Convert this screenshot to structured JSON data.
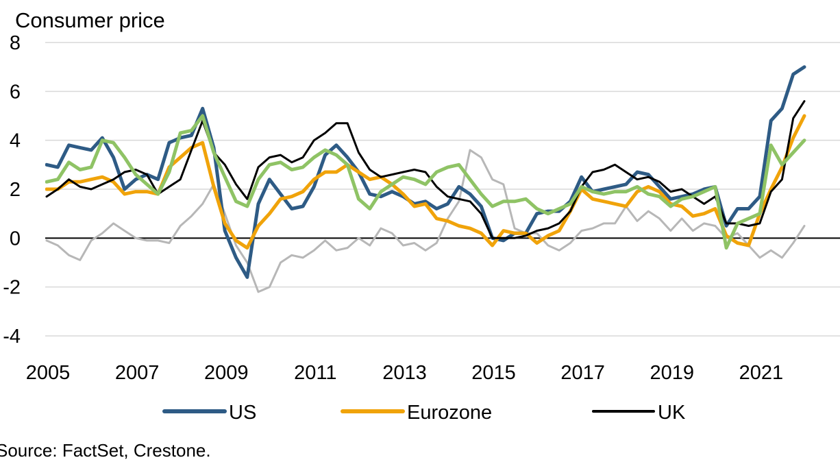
{
  "chart_data": {
    "type": "line",
    "title": "Consumer price",
    "xlabel": "",
    "ylabel": "",
    "ylim": [
      -4,
      8
    ],
    "y_ticks": [
      "8",
      "6",
      "4",
      "2",
      "0",
      "-2",
      "-4"
    ],
    "x_ticks": [
      "2005",
      "2007",
      "2009",
      "2011",
      "2013",
      "2015",
      "2017",
      "2019",
      "2021"
    ],
    "xlim": [
      2005,
      2022.8
    ],
    "grid": "horizontal",
    "legend_position": "bottom",
    "source": "Source: FactSet, Crestone.",
    "series": [
      {
        "name": "",
        "color": "#b7b7b7",
        "width": 3,
        "x": [
          2005.0,
          2005.25,
          2005.5,
          2005.75,
          2006.0,
          2006.25,
          2006.5,
          2006.75,
          2007.0,
          2007.25,
          2007.5,
          2007.75,
          2008.0,
          2008.25,
          2008.5,
          2008.75,
          2009.0,
          2009.25,
          2009.5,
          2009.75,
          2010.0,
          2010.25,
          2010.5,
          2010.75,
          2011.0,
          2011.25,
          2011.5,
          2011.75,
          2012.0,
          2012.25,
          2012.5,
          2012.75,
          2013.0,
          2013.25,
          2013.5,
          2013.75,
          2014.0,
          2014.25,
          2014.5,
          2014.75,
          2015.0,
          2015.25,
          2015.5,
          2015.75,
          2016.0,
          2016.25,
          2016.5,
          2016.75,
          2017.0,
          2017.25,
          2017.5,
          2017.75,
          2018.0,
          2018.25,
          2018.5,
          2018.75,
          2019.0,
          2019.25,
          2019.5,
          2019.75,
          2020.0,
          2020.25,
          2020.5,
          2020.75,
          2021.0,
          2021.25,
          2021.5,
          2021.75,
          2022.0
        ],
        "values": [
          -0.1,
          -0.3,
          -0.7,
          -0.9,
          -0.1,
          0.2,
          0.6,
          0.3,
          0.0,
          -0.1,
          -0.1,
          -0.2,
          0.5,
          0.9,
          1.4,
          2.2,
          1.0,
          -0.3,
          -1.0,
          -2.2,
          -2.0,
          -1.0,
          -0.7,
          -0.8,
          -0.5,
          -0.1,
          -0.5,
          -0.4,
          0.0,
          -0.3,
          0.4,
          0.2,
          -0.3,
          -0.2,
          -0.5,
          -0.2,
          0.8,
          1.5,
          3.6,
          3.3,
          2.4,
          2.2,
          0.4,
          0.2,
          0.2,
          -0.3,
          -0.5,
          -0.2,
          0.3,
          0.4,
          0.6,
          0.6,
          1.3,
          0.7,
          1.1,
          0.8,
          0.3,
          0.8,
          0.3,
          0.6,
          0.5,
          0.0,
          0.2,
          -0.3,
          -0.8,
          -0.5,
          -0.8,
          -0.2,
          0.5
        ]
      },
      {
        "name": "US",
        "color": "#2e5b85",
        "width": 5,
        "x": [
          2005.0,
          2005.25,
          2005.5,
          2005.75,
          2006.0,
          2006.25,
          2006.5,
          2006.75,
          2007.0,
          2007.25,
          2007.5,
          2007.75,
          2008.0,
          2008.25,
          2008.5,
          2008.75,
          2009.0,
          2009.25,
          2009.5,
          2009.75,
          2010.0,
          2010.25,
          2010.5,
          2010.75,
          2011.0,
          2011.25,
          2011.5,
          2011.75,
          2012.0,
          2012.25,
          2012.5,
          2012.75,
          2013.0,
          2013.25,
          2013.5,
          2013.75,
          2014.0,
          2014.25,
          2014.5,
          2014.75,
          2015.0,
          2015.25,
          2015.5,
          2015.75,
          2016.0,
          2016.25,
          2016.5,
          2016.75,
          2017.0,
          2017.25,
          2017.5,
          2017.75,
          2018.0,
          2018.25,
          2018.5,
          2018.75,
          2019.0,
          2019.25,
          2019.5,
          2019.75,
          2020.0,
          2020.25,
          2020.5,
          2020.75,
          2021.0,
          2021.25,
          2021.5,
          2021.75,
          2022.0
        ],
        "values": [
          3.0,
          2.9,
          3.8,
          3.7,
          3.6,
          4.1,
          3.3,
          2.0,
          2.4,
          2.6,
          2.4,
          3.9,
          4.1,
          4.2,
          5.3,
          3.7,
          0.3,
          -0.8,
          -1.6,
          1.4,
          2.4,
          1.8,
          1.2,
          1.3,
          2.1,
          3.4,
          3.8,
          3.3,
          2.7,
          1.8,
          1.7,
          1.9,
          1.7,
          1.4,
          1.5,
          1.2,
          1.4,
          2.1,
          1.8,
          1.3,
          0.0,
          -0.1,
          0.2,
          0.2,
          1.0,
          1.1,
          1.1,
          1.5,
          2.5,
          1.9,
          2.0,
          2.1,
          2.2,
          2.7,
          2.6,
          2.1,
          1.6,
          1.7,
          1.8,
          2.0,
          2.1,
          0.5,
          1.2,
          1.2,
          1.7,
          4.8,
          5.3,
          6.7,
          7.0
        ]
      },
      {
        "name": "Eurozone",
        "color": "#f0a30a",
        "width": 5,
        "x": [
          2005.0,
          2005.25,
          2005.5,
          2005.75,
          2006.0,
          2006.25,
          2006.5,
          2006.75,
          2007.0,
          2007.25,
          2007.5,
          2007.75,
          2008.0,
          2008.25,
          2008.5,
          2008.75,
          2009.0,
          2009.25,
          2009.5,
          2009.75,
          2010.0,
          2010.25,
          2010.5,
          2010.75,
          2011.0,
          2011.25,
          2011.5,
          2011.75,
          2012.0,
          2012.25,
          2012.5,
          2012.75,
          2013.0,
          2013.25,
          2013.5,
          2013.75,
          2014.0,
          2014.25,
          2014.5,
          2014.75,
          2015.0,
          2015.25,
          2015.5,
          2015.75,
          2016.0,
          2016.25,
          2016.5,
          2016.75,
          2017.0,
          2017.25,
          2017.5,
          2017.75,
          2018.0,
          2018.25,
          2018.5,
          2018.75,
          2019.0,
          2019.25,
          2019.5,
          2019.75,
          2020.0,
          2020.25,
          2020.5,
          2020.75,
          2021.0,
          2021.25,
          2021.5,
          2021.75,
          2022.0
        ],
        "values": [
          2.0,
          2.0,
          2.3,
          2.3,
          2.4,
          2.5,
          2.3,
          1.8,
          1.9,
          1.9,
          1.8,
          2.9,
          3.3,
          3.7,
          3.9,
          2.1,
          0.6,
          -0.1,
          -0.4,
          0.5,
          1.0,
          1.6,
          1.7,
          1.9,
          2.4,
          2.7,
          2.7,
          3.0,
          2.7,
          2.4,
          2.5,
          2.2,
          1.8,
          1.3,
          1.4,
          0.8,
          0.7,
          0.5,
          0.4,
          0.2,
          -0.3,
          0.3,
          0.2,
          0.2,
          -0.2,
          0.1,
          0.3,
          1.1,
          2.0,
          1.6,
          1.5,
          1.4,
          1.3,
          1.9,
          2.1,
          1.9,
          1.4,
          1.3,
          0.9,
          1.0,
          1.2,
          0.1,
          -0.2,
          -0.3,
          1.0,
          2.0,
          2.9,
          4.1,
          5.0
        ]
      },
      {
        "name": "UK",
        "color": "#000000",
        "width": 3,
        "x": [
          2005.0,
          2005.25,
          2005.5,
          2005.75,
          2006.0,
          2006.25,
          2006.5,
          2006.75,
          2007.0,
          2007.25,
          2007.5,
          2007.75,
          2008.0,
          2008.25,
          2008.5,
          2008.75,
          2009.0,
          2009.25,
          2009.5,
          2009.75,
          2010.0,
          2010.25,
          2010.5,
          2010.75,
          2011.0,
          2011.25,
          2011.5,
          2011.75,
          2012.0,
          2012.25,
          2012.5,
          2012.75,
          2013.0,
          2013.25,
          2013.5,
          2013.75,
          2014.0,
          2014.25,
          2014.5,
          2014.75,
          2015.0,
          2015.25,
          2015.5,
          2015.75,
          2016.0,
          2016.25,
          2016.5,
          2016.75,
          2017.0,
          2017.25,
          2017.5,
          2017.75,
          2018.0,
          2018.25,
          2018.5,
          2018.75,
          2019.0,
          2019.25,
          2019.5,
          2019.75,
          2020.0,
          2020.25,
          2020.5,
          2020.75,
          2021.0,
          2021.25,
          2021.5,
          2021.75,
          2022.0
        ],
        "values": [
          1.7,
          2.0,
          2.4,
          2.1,
          2.0,
          2.2,
          2.4,
          2.7,
          2.8,
          2.6,
          1.8,
          2.1,
          2.4,
          3.6,
          4.8,
          3.5,
          3.0,
          2.2,
          1.6,
          2.9,
          3.3,
          3.4,
          3.1,
          3.3,
          4.0,
          4.3,
          4.7,
          4.7,
          3.5,
          2.8,
          2.5,
          2.6,
          2.7,
          2.8,
          2.7,
          2.1,
          1.7,
          1.6,
          1.5,
          1.0,
          0.0,
          0.0,
          0.0,
          0.1,
          0.3,
          0.4,
          0.6,
          1.1,
          2.1,
          2.7,
          2.8,
          3.0,
          2.7,
          2.4,
          2.5,
          2.3,
          1.9,
          2.0,
          1.7,
          1.4,
          1.7,
          0.6,
          0.6,
          0.5,
          0.6,
          1.9,
          2.4,
          4.9,
          5.6
        ]
      },
      {
        "name": "",
        "color": "#8fc365",
        "width": 5,
        "x": [
          2005.0,
          2005.25,
          2005.5,
          2005.75,
          2006.0,
          2006.25,
          2006.5,
          2006.75,
          2007.0,
          2007.25,
          2007.5,
          2007.75,
          2008.0,
          2008.25,
          2008.5,
          2008.75,
          2009.0,
          2009.25,
          2009.5,
          2009.75,
          2010.0,
          2010.25,
          2010.5,
          2010.75,
          2011.0,
          2011.25,
          2011.5,
          2011.75,
          2012.0,
          2012.25,
          2012.5,
          2012.75,
          2013.0,
          2013.25,
          2013.5,
          2013.75,
          2014.0,
          2014.25,
          2014.5,
          2014.75,
          2015.0,
          2015.25,
          2015.5,
          2015.75,
          2016.0,
          2016.25,
          2016.5,
          2016.75,
          2017.0,
          2017.25,
          2017.5,
          2017.75,
          2018.0,
          2018.25,
          2018.5,
          2018.75,
          2019.0,
          2019.25,
          2019.5,
          2019.75,
          2020.0,
          2020.25,
          2020.5,
          2020.75,
          2021.0,
          2021.25,
          2021.5,
          2021.75,
          2022.0
        ],
        "values": [
          2.3,
          2.4,
          3.1,
          2.8,
          2.9,
          4.0,
          3.9,
          3.3,
          2.6,
          2.2,
          1.8,
          2.7,
          4.3,
          4.4,
          5.0,
          3.5,
          2.5,
          1.5,
          1.3,
          2.4,
          3.0,
          3.1,
          2.8,
          2.9,
          3.3,
          3.6,
          3.4,
          3.0,
          1.6,
          1.2,
          1.9,
          2.2,
          2.5,
          2.4,
          2.2,
          2.7,
          2.9,
          3.0,
          2.4,
          1.8,
          1.3,
          1.5,
          1.5,
          1.6,
          1.2,
          1.0,
          1.2,
          1.4,
          2.1,
          1.9,
          1.8,
          1.9,
          1.9,
          2.1,
          1.8,
          1.7,
          1.3,
          1.6,
          1.7,
          1.9,
          2.1,
          -0.4,
          0.6,
          0.8,
          1.0,
          3.8,
          3.0,
          3.5,
          4.0
        ]
      }
    ]
  }
}
